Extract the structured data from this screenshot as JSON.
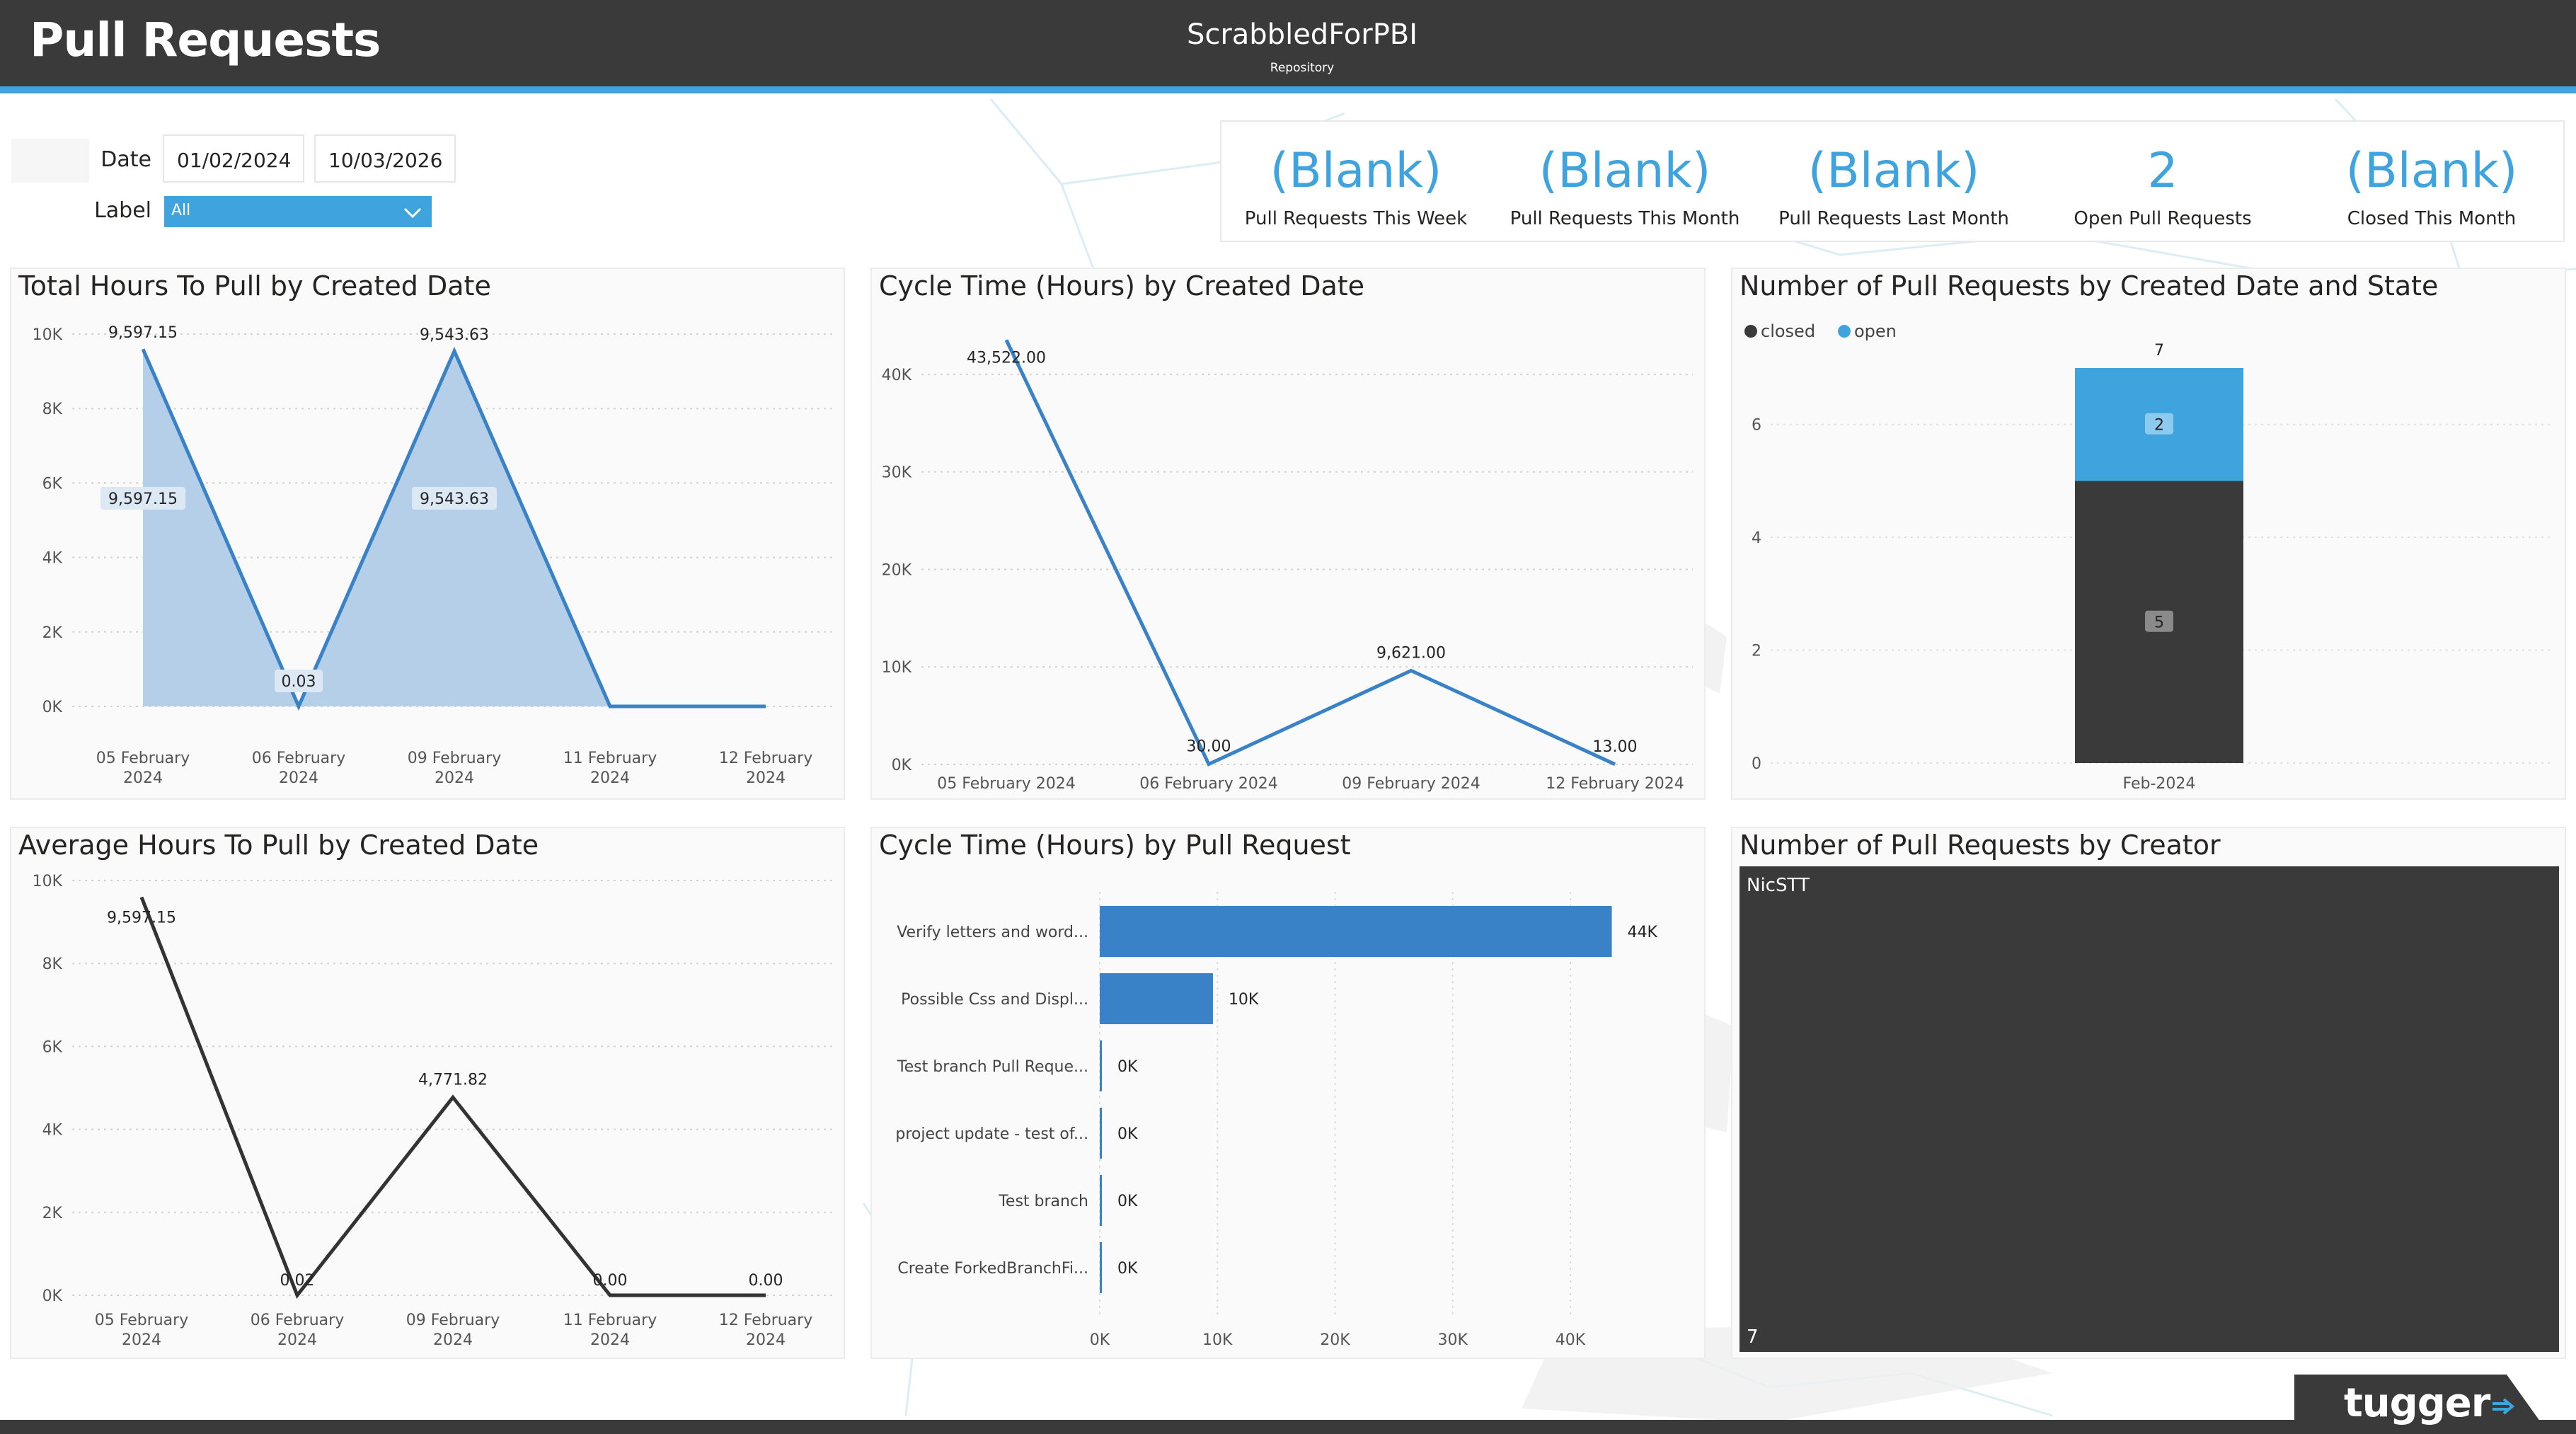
{
  "header": {
    "title": "Pull Requests",
    "repo_name": "ScrabbledForPBI",
    "repo_caption": "Repository"
  },
  "filters": {
    "date_label": "Date",
    "date_from": "01/02/2024",
    "date_to": "10/03/2026",
    "label_label": "Label",
    "label_value": "All"
  },
  "kpis": [
    {
      "value": "(Blank)",
      "label": "Pull Requests This Week"
    },
    {
      "value": "(Blank)",
      "label": "Pull Requests This Month"
    },
    {
      "value": "(Blank)",
      "label": "Pull Requests Last Month"
    },
    {
      "value": "2",
      "label": "Open Pull Requests"
    },
    {
      "value": "(Blank)",
      "label": "Closed This Month"
    }
  ],
  "panels": {
    "total_hours": {
      "title": "Total Hours To Pull by Created Date"
    },
    "cycle_time_date": {
      "title": "Cycle Time (Hours) by Created Date"
    },
    "count_state": {
      "title": "Number of Pull Requests by Created Date and State"
    },
    "avg_hours": {
      "title": "Average Hours To Pull by Created Date"
    },
    "cycle_time_pr": {
      "title": "Cycle Time (Hours) by Pull Request"
    },
    "creator": {
      "title": "Number of Pull Requests by Creator"
    }
  },
  "chart_data": [
    {
      "id": "total_hours",
      "type": "area",
      "title": "Total Hours To Pull by Created Date",
      "categories": [
        "05 February 2024",
        "06 February 2024",
        "09 February 2024",
        "11 February 2024",
        "12 February 2024"
      ],
      "x_tick_lines": [
        [
          "05 February",
          "2024"
        ],
        [
          "06 February",
          "2024"
        ],
        [
          "09 February",
          "2024"
        ],
        [
          "11 February",
          "2024"
        ],
        [
          "12 February",
          "2024"
        ]
      ],
      "values": [
        9597.15,
        0.03,
        9543.63,
        0,
        0
      ],
      "peak_labels": [
        {
          "index": 0,
          "text": "9,597.15"
        },
        {
          "index": 2,
          "text": "9,543.63"
        }
      ],
      "inner_labels": [
        {
          "index": 0,
          "text": "9,597.15"
        },
        {
          "index": 1,
          "text": "0.03"
        },
        {
          "index": 2,
          "text": "9,543.63"
        }
      ],
      "y_ticks": [
        {
          "v": 0,
          "t": "0K"
        },
        {
          "v": 2000,
          "t": "2K"
        },
        {
          "v": 4000,
          "t": "4K"
        },
        {
          "v": 6000,
          "t": "6K"
        },
        {
          "v": 8000,
          "t": "8K"
        },
        {
          "v": 10000,
          "t": "10K"
        }
      ],
      "ylim": [
        0,
        10000
      ],
      "grid": true,
      "line_color": "#3a82c8",
      "fill_color": "#b6cfe9"
    },
    {
      "id": "cycle_time_date",
      "type": "line",
      "title": "Cycle Time (Hours) by Created Date",
      "categories": [
        "05 February 2024",
        "06 February 2024",
        "09 February 2024",
        "12 February 2024"
      ],
      "values": [
        43522.0,
        30.0,
        9621.0,
        13.0
      ],
      "value_labels": [
        "43,522.00",
        "30.00",
        "9,621.00",
        "13.00"
      ],
      "y_ticks": [
        {
          "v": 0,
          "t": "0K"
        },
        {
          "v": 10000,
          "t": "10K"
        },
        {
          "v": 20000,
          "t": "20K"
        },
        {
          "v": 30000,
          "t": "30K"
        },
        {
          "v": 40000,
          "t": "40K"
        }
      ],
      "ylim": [
        0,
        45000
      ],
      "grid": true,
      "line_color": "#3a82c8"
    },
    {
      "id": "count_state",
      "type": "bar",
      "title": "Number of Pull Requests by Created Date and State",
      "categories": [
        "Feb-2024"
      ],
      "series": [
        {
          "name": "closed",
          "values": [
            5
          ],
          "color": "#3a3a3a"
        },
        {
          "name": "open",
          "values": [
            2
          ],
          "color": "#3fa3dd"
        }
      ],
      "total_labels": [
        "7"
      ],
      "y_ticks": [
        {
          "v": 0,
          "t": "0"
        },
        {
          "v": 2,
          "t": "2"
        },
        {
          "v": 4,
          "t": "4"
        },
        {
          "v": 6,
          "t": "6"
        }
      ],
      "ylim": [
        0,
        7
      ],
      "legend": "top-left",
      "grid": true
    },
    {
      "id": "avg_hours",
      "type": "line",
      "title": "Average Hours To Pull by Created Date",
      "categories": [
        "05 February 2024",
        "06 February 2024",
        "09 February 2024",
        "11 February 2024",
        "12 February 2024"
      ],
      "x_tick_lines": [
        [
          "05 February",
          "2024"
        ],
        [
          "06 February",
          "2024"
        ],
        [
          "09 February",
          "2024"
        ],
        [
          "11 February",
          "2024"
        ],
        [
          "12 February",
          "2024"
        ]
      ],
      "values": [
        9597.15,
        0.02,
        4771.82,
        0.0,
        0.0
      ],
      "value_labels": [
        "9,597.15",
        "0.02",
        "4,771.82",
        "0.00",
        "0.00"
      ],
      "y_ticks": [
        {
          "v": 0,
          "t": "0K"
        },
        {
          "v": 2000,
          "t": "2K"
        },
        {
          "v": 4000,
          "t": "4K"
        },
        {
          "v": 6000,
          "t": "6K"
        },
        {
          "v": 8000,
          "t": "8K"
        },
        {
          "v": 10000,
          "t": "10K"
        }
      ],
      "ylim": [
        0,
        10000
      ],
      "grid": true,
      "line_color": "#333333"
    },
    {
      "id": "cycle_time_pr",
      "type": "bar",
      "orientation": "horizontal",
      "title": "Cycle Time (Hours) by Pull Request",
      "categories": [
        "Verify letters and word...",
        "Possible Css and Displ...",
        "Test branch Pull Reque...",
        "project update - test of...",
        "Test branch",
        "Create ForkedBranchFi..."
      ],
      "values": [
        43522,
        9621,
        30,
        13,
        0,
        0
      ],
      "value_labels": [
        "44K",
        "10K",
        "0K",
        "0K",
        "0K",
        "0K"
      ],
      "x_ticks": [
        {
          "v": 0,
          "t": "0K"
        },
        {
          "v": 10000,
          "t": "10K"
        },
        {
          "v": 20000,
          "t": "20K"
        },
        {
          "v": 30000,
          "t": "30K"
        },
        {
          "v": 40000,
          "t": "40K"
        }
      ],
      "xlim": [
        0,
        48000
      ],
      "grid": true,
      "bar_color": "#3a82c8"
    },
    {
      "id": "creator",
      "type": "treemap",
      "title": "Number of Pull Requests by Creator",
      "categories": [
        "NicSTT"
      ],
      "values": [
        7
      ],
      "value_labels": [
        "7"
      ],
      "color": "#3a3a3a"
    }
  ],
  "branding": {
    "logo": "tugger",
    "logo_icon": "arrow-icon"
  }
}
